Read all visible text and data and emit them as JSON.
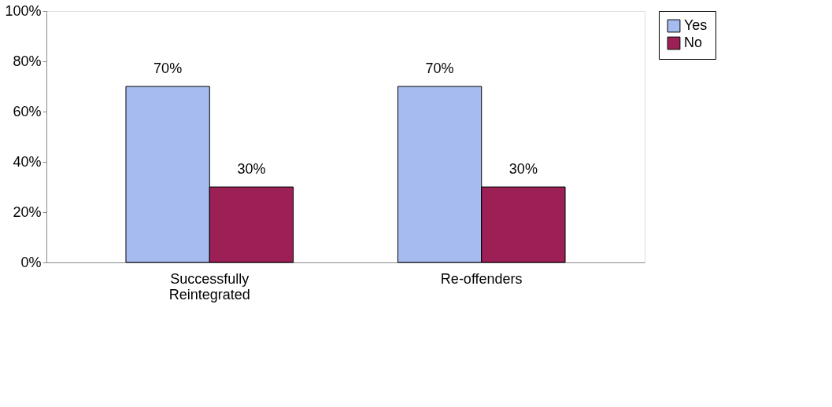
{
  "chart_data": {
    "type": "bar",
    "categories": [
      "Successfully Reintegrated",
      "Re-offenders"
    ],
    "series": [
      {
        "name": "Yes",
        "color": "#a6bcf0",
        "values": [
          70,
          70
        ],
        "value_labels": [
          "70%",
          "70%"
        ]
      },
      {
        "name": "No",
        "color": "#9c1f55",
        "values": [
          30,
          30
        ],
        "value_labels": [
          "30%",
          "30%"
        ]
      }
    ],
    "ylim": [
      0,
      100
    ],
    "yticks": [
      {
        "value": 0,
        "label": "0%"
      },
      {
        "value": 20,
        "label": "20%"
      },
      {
        "value": 40,
        "label": "40%"
      },
      {
        "value": 60,
        "label": "60%"
      },
      {
        "value": 80,
        "label": "80%"
      },
      {
        "value": 100,
        "label": "100%"
      }
    ],
    "grid": false,
    "legend": "right"
  }
}
